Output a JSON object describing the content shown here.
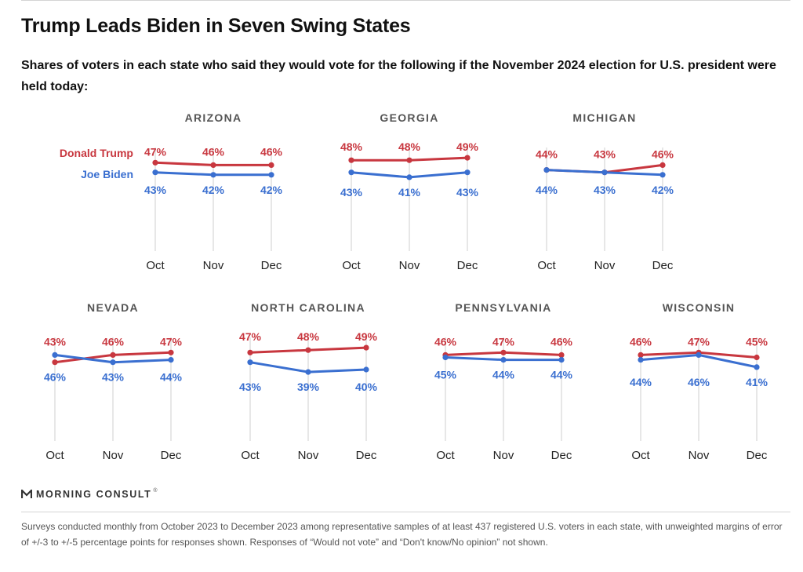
{
  "chart_data": {
    "type": "line",
    "title": "Trump Leads Biden in Seven Swing States",
    "subtitle": "Shares of voters in each state who said they would vote for the following if the November 2024 election for U.S. president were held today:",
    "categories": [
      "Oct",
      "Nov",
      "Dec"
    ],
    "ylim": [
      35,
      50
    ],
    "legend": [
      {
        "name": "Donald Trump",
        "color": "#c8373f"
      },
      {
        "name": "Joe Biden",
        "color": "#3a6fd0"
      }
    ],
    "panels": [
      {
        "state": "ARIZONA",
        "trump": [
          47,
          46,
          46
        ],
        "biden": [
          43,
          42,
          42
        ],
        "trump_labels": [
          "47%",
          "46%",
          "46%"
        ],
        "biden_labels": [
          "43%",
          "42%",
          "42%"
        ]
      },
      {
        "state": "GEORGIA",
        "trump": [
          48,
          48,
          49
        ],
        "biden": [
          43,
          41,
          43
        ],
        "trump_labels": [
          "48%",
          "48%",
          "49%"
        ],
        "biden_labels": [
          "43%",
          "41%",
          "43%"
        ]
      },
      {
        "state": "MICHIGAN",
        "trump": [
          44,
          43,
          46
        ],
        "biden": [
          44,
          43,
          42
        ],
        "trump_labels": [
          "44%",
          "43%",
          "46%"
        ],
        "biden_labels": [
          "44%",
          "43%",
          "42%"
        ]
      },
      {
        "state": "NEVADA",
        "trump": [
          43,
          46,
          47
        ],
        "biden": [
          46,
          43,
          44
        ],
        "trump_labels": [
          "43%",
          "46%",
          "47%"
        ],
        "biden_labels": [
          "46%",
          "43%",
          "44%"
        ]
      },
      {
        "state": "NORTH CAROLINA",
        "trump": [
          47,
          48,
          49
        ],
        "biden": [
          43,
          39,
          40
        ],
        "trump_labels": [
          "47%",
          "48%",
          "49%"
        ],
        "biden_labels": [
          "43%",
          "39%",
          "40%"
        ]
      },
      {
        "state": "PENNSYLVANIA",
        "trump": [
          46,
          47,
          46
        ],
        "biden": [
          45,
          44,
          44
        ],
        "trump_labels": [
          "46%",
          "47%",
          "46%"
        ],
        "biden_labels": [
          "45%",
          "44%",
          "44%"
        ]
      },
      {
        "state": "WISCONSIN",
        "trump": [
          46,
          47,
          45
        ],
        "biden": [
          44,
          46,
          41
        ],
        "trump_labels": [
          "46%",
          "47%",
          "45%"
        ],
        "biden_labels": [
          "44%",
          "46%",
          "41%"
        ]
      }
    ]
  },
  "branding": {
    "logo_text": "MORNING CONSULT",
    "trademark": "®"
  },
  "footnote": "Surveys conducted monthly from October 2023 to December 2023 among representative samples of at least 437 registered U.S. voters in each state, with unweighted margins of error of +/-3 to +/-5 percentage points for responses shown. Responses of “Would not vote” and “Don't know/No opinion” not shown."
}
